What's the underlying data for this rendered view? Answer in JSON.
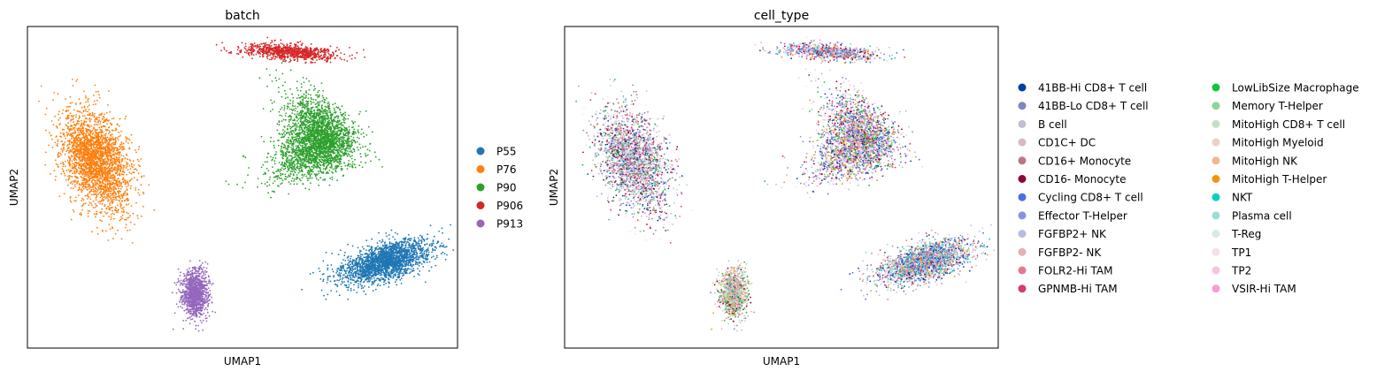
{
  "chart_data": [
    {
      "type": "scatter",
      "title": "batch",
      "xlabel": "UMAP1",
      "ylabel": "UMAP2",
      "grid": false,
      "legend_placement": "right",
      "legend": [
        {
          "label": "P55",
          "color": "#1f77b4"
        },
        {
          "label": "P76",
          "color": "#ff7f0e"
        },
        {
          "label": "P90",
          "color": "#2ca02c"
        },
        {
          "label": "P906",
          "color": "#d62728"
        },
        {
          "label": "P913",
          "color": "#9467bd"
        }
      ],
      "clusters": [
        {
          "batch": "P906",
          "x": 3.2,
          "y": 9.2,
          "sx": 2.0,
          "sy": 0.35,
          "n": 900,
          "tilt": -0.06
        },
        {
          "batch": "P76",
          "x": -5.8,
          "y": 3.6,
          "sx": 1.3,
          "sy": 2.4,
          "n": 2600,
          "tilt": 0.35
        },
        {
          "batch": "P90",
          "x": 4.7,
          "y": 4.6,
          "sx": 1.5,
          "sy": 1.9,
          "n": 2800,
          "tilt": -0.25
        },
        {
          "batch": "P55",
          "x": 7.6,
          "y": -1.6,
          "sx": 2.0,
          "sy": 0.8,
          "n": 2200,
          "tilt": 0.35
        },
        {
          "batch": "P913",
          "x": -1.2,
          "y": -3.2,
          "sx": 0.55,
          "sy": 1.1,
          "n": 1200,
          "tilt": 0.0
        }
      ]
    },
    {
      "type": "scatter",
      "title": "cell_type",
      "xlabel": "UMAP1",
      "ylabel": "UMAP2",
      "grid": false,
      "legend_placement": "right",
      "legend": [
        {
          "label": "41BB-Hi CD8+ T cell",
          "color": "#023fa5"
        },
        {
          "label": "41BB-Lo CD8+ T cell",
          "color": "#7d87b9"
        },
        {
          "label": "B cell",
          "color": "#bec1d4"
        },
        {
          "label": "CD1C+ DC",
          "color": "#d6bcc0"
        },
        {
          "label": "CD16+ Monocyte",
          "color": "#bb7784"
        },
        {
          "label": "CD16- Monocyte",
          "color": "#8e063b"
        },
        {
          "label": "Cycling CD8+ T cell",
          "color": "#4a6fe3"
        },
        {
          "label": "Effector T-Helper",
          "color": "#8595e1"
        },
        {
          "label": "FGFBP2+ NK",
          "color": "#b5bbe3"
        },
        {
          "label": "FGFBP2- NK",
          "color": "#e6afb9"
        },
        {
          "label": "FOLR2-Hi TAM",
          "color": "#e07b91"
        },
        {
          "label": "GPNMB-Hi TAM",
          "color": "#d33f6a"
        },
        {
          "label": "LowLibSize Macrophage",
          "color": "#11c638"
        },
        {
          "label": "Memory T-Helper",
          "color": "#8dd593"
        },
        {
          "label": "MitoHigh CD8+ T cell",
          "color": "#c6dec7"
        },
        {
          "label": "MitoHigh Myeloid",
          "color": "#ead3c6"
        },
        {
          "label": "MitoHigh NK",
          "color": "#f0b98d"
        },
        {
          "label": "MitoHigh T-Helper",
          "color": "#ef9708"
        },
        {
          "label": "NKT",
          "color": "#0fcfc0"
        },
        {
          "label": "Plasma cell",
          "color": "#9cded6"
        },
        {
          "label": "T-Reg",
          "color": "#d5eae7"
        },
        {
          "label": "TP1",
          "color": "#f3e1eb"
        },
        {
          "label": "TP2",
          "color": "#f6c4e1"
        },
        {
          "label": "VSIR-Hi TAM",
          "color": "#f79cd4"
        }
      ]
    }
  ]
}
